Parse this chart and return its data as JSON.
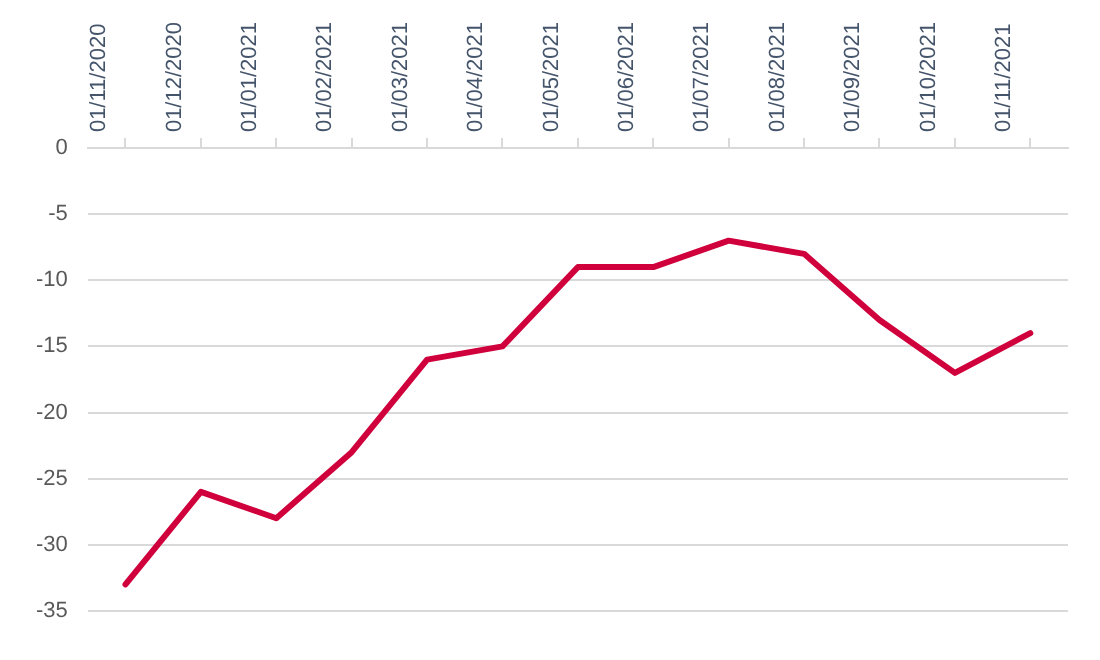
{
  "chart_data": {
    "type": "line",
    "categories": [
      "01/11/2020",
      "01/12/2020",
      "01/01/2021",
      "01/02/2021",
      "01/03/2021",
      "01/04/2021",
      "01/05/2021",
      "01/06/2021",
      "01/07/2021",
      "01/08/2021",
      "01/09/2021",
      "01/10/2021",
      "01/11/2021"
    ],
    "series": [
      {
        "color": "#d0003c",
        "values": [
          -33,
          -26,
          -28,
          -23,
          -16,
          -15,
          -9,
          -9,
          -7,
          -8,
          -13,
          -17,
          -14
        ]
      }
    ],
    "ylim": [
      -35,
      0
    ],
    "yticks": [
      -35,
      -30,
      -25,
      -20,
      -15,
      -10,
      -5,
      0
    ],
    "grid": "y",
    "legend": false,
    "marker": "none",
    "line_style": "solid"
  }
}
